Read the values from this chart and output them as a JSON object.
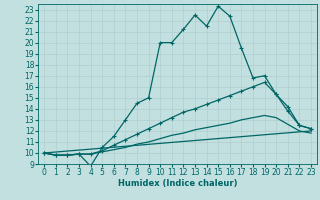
{
  "title": "",
  "xlabel": "Humidex (Indice chaleur)",
  "xlim": [
    -0.5,
    23.5
  ],
  "ylim": [
    9,
    23.5
  ],
  "xticks": [
    0,
    1,
    2,
    3,
    4,
    5,
    6,
    7,
    8,
    9,
    10,
    11,
    12,
    13,
    14,
    15,
    16,
    17,
    18,
    19,
    20,
    21,
    22,
    23
  ],
  "yticks": [
    9,
    10,
    11,
    12,
    13,
    14,
    15,
    16,
    17,
    18,
    19,
    20,
    21,
    22,
    23
  ],
  "bg_color": "#c2e0e0",
  "line_color": "#006666",
  "grid_color": "#b0cece",
  "lines": [
    {
      "x": [
        0,
        1,
        2,
        3,
        4,
        5,
        6,
        7,
        8,
        9,
        10,
        11,
        12,
        13,
        14,
        15,
        16,
        17,
        18,
        19,
        20,
        21,
        22,
        23
      ],
      "y": [
        10,
        9.8,
        9.8,
        9.9,
        8.8,
        10.5,
        11.5,
        13,
        14.5,
        15,
        20,
        20,
        21.2,
        22.5,
        21.5,
        23.3,
        22.4,
        19.5,
        16.8,
        17,
        15.3,
        14.2,
        12.5,
        12.2
      ],
      "has_marker": true
    },
    {
      "x": [
        0,
        1,
        2,
        3,
        4,
        5,
        6,
        7,
        8,
        9,
        10,
        11,
        12,
        13,
        14,
        15,
        16,
        17,
        18,
        19,
        20,
        21,
        22,
        23
      ],
      "y": [
        10,
        9.8,
        9.8,
        9.9,
        9.9,
        10.2,
        10.7,
        11.2,
        11.7,
        12.2,
        12.7,
        13.2,
        13.7,
        14.0,
        14.4,
        14.8,
        15.2,
        15.6,
        16.0,
        16.4,
        15.3,
        13.8,
        12.5,
        12.2
      ],
      "has_marker": true
    },
    {
      "x": [
        0,
        1,
        2,
        3,
        4,
        5,
        6,
        7,
        8,
        9,
        10,
        11,
        12,
        13,
        14,
        15,
        16,
        17,
        18,
        19,
        20,
        21,
        22,
        23
      ],
      "y": [
        10,
        9.8,
        9.8,
        9.9,
        9.9,
        10.1,
        10.3,
        10.5,
        10.8,
        11.0,
        11.3,
        11.6,
        11.8,
        12.1,
        12.3,
        12.5,
        12.7,
        13.0,
        13.2,
        13.4,
        13.2,
        12.6,
        12.0,
        11.8
      ],
      "has_marker": false
    },
    {
      "x": [
        0,
        23
      ],
      "y": [
        10,
        12.0
      ],
      "has_marker": false
    }
  ],
  "marker": "+",
  "marker_size": 3,
  "linewidth": 0.9,
  "label_fontsize": 6,
  "tick_fontsize": 5.5
}
